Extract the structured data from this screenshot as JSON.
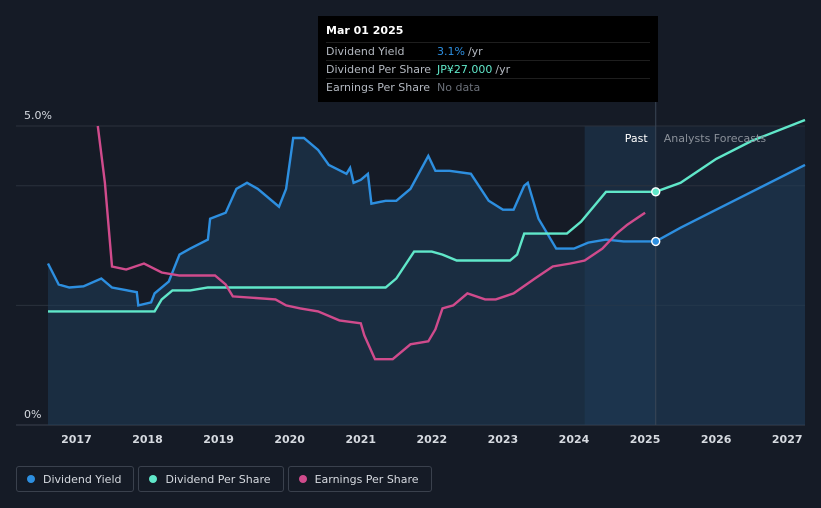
{
  "tooltip": {
    "date": "Mar 01 2025",
    "rows": [
      {
        "label": "Dividend Yield",
        "value": "3.1%",
        "unit": "/yr"
      },
      {
        "label": "Dividend Per Share",
        "value": "JP¥27.000",
        "unit": "/yr"
      },
      {
        "label": "Earnings Per Share",
        "value": "No data",
        "unit": ""
      }
    ]
  },
  "legend": [
    {
      "label": "Dividend Yield",
      "color": "#2d8fe0"
    },
    {
      "label": "Dividend Per Share",
      "color": "#60e7c9"
    },
    {
      "label": "Earnings Per Share",
      "color": "#d04b8c"
    }
  ],
  "chart_data": {
    "type": "line",
    "y_tick_labels": [
      "5.0%",
      "0%"
    ],
    "ylim": [
      0,
      5.0
    ],
    "xlim": [
      2016.6,
      2027.25
    ],
    "x_ticks": [
      2017,
      2018,
      2019,
      2020,
      2021,
      2022,
      2023,
      2024,
      2025,
      2026,
      2027
    ],
    "past_label": "Past",
    "forecast_label": "Analysts Forecasts",
    "forecast_start": 2024.15,
    "today": 2025.15,
    "colors": {
      "yield": "#2d8fe0",
      "dps": "#60e7c9",
      "eps": "#d04b8c"
    },
    "series": [
      {
        "name": "Dividend Yield",
        "unit": "%",
        "points": [
          [
            2016.6,
            2.7
          ],
          [
            2016.75,
            2.35
          ],
          [
            2016.9,
            2.3
          ],
          [
            2017.1,
            2.32
          ],
          [
            2017.35,
            2.45
          ],
          [
            2017.5,
            2.3
          ],
          [
            2017.85,
            2.22
          ],
          [
            2017.87,
            2.0
          ],
          [
            2018.05,
            2.05
          ],
          [
            2018.1,
            2.2
          ],
          [
            2018.3,
            2.4
          ],
          [
            2018.45,
            2.85
          ],
          [
            2018.6,
            2.95
          ],
          [
            2018.85,
            3.1
          ],
          [
            2018.88,
            3.45
          ],
          [
            2019.1,
            3.55
          ],
          [
            2019.25,
            3.95
          ],
          [
            2019.4,
            4.05
          ],
          [
            2019.55,
            3.95
          ],
          [
            2019.85,
            3.65
          ],
          [
            2019.95,
            3.95
          ],
          [
            2020.05,
            4.8
          ],
          [
            2020.2,
            4.8
          ],
          [
            2020.4,
            4.6
          ],
          [
            2020.55,
            4.35
          ],
          [
            2020.8,
            4.2
          ],
          [
            2020.85,
            4.3
          ],
          [
            2020.9,
            4.05
          ],
          [
            2021.0,
            4.1
          ],
          [
            2021.1,
            4.2
          ],
          [
            2021.15,
            3.7
          ],
          [
            2021.35,
            3.75
          ],
          [
            2021.5,
            3.75
          ],
          [
            2021.7,
            3.95
          ],
          [
            2021.95,
            4.5
          ],
          [
            2022.05,
            4.25
          ],
          [
            2022.12,
            4.25
          ],
          [
            2022.15,
            4.25
          ],
          [
            2022.25,
            4.25
          ],
          [
            2022.55,
            4.2
          ],
          [
            2022.8,
            3.75
          ],
          [
            2023.0,
            3.6
          ],
          [
            2023.15,
            3.6
          ],
          [
            2023.3,
            4.0
          ],
          [
            2023.35,
            4.05
          ],
          [
            2023.5,
            3.45
          ],
          [
            2023.75,
            2.95
          ],
          [
            2024.0,
            2.95
          ],
          [
            2024.2,
            3.05
          ],
          [
            2024.45,
            3.1
          ],
          [
            2024.7,
            3.07
          ],
          [
            2025.15,
            3.07
          ],
          [
            2025.5,
            3.3
          ],
          [
            2026.0,
            3.6
          ],
          [
            2026.5,
            3.9
          ],
          [
            2027.25,
            4.35
          ]
        ]
      },
      {
        "name": "Dividend Per Share",
        "points": [
          [
            2016.6,
            1.9
          ],
          [
            2018.1,
            1.9
          ],
          [
            2018.2,
            2.1
          ],
          [
            2018.35,
            2.25
          ],
          [
            2018.6,
            2.25
          ],
          [
            2018.85,
            2.3
          ],
          [
            2019.0,
            2.3
          ],
          [
            2021.35,
            2.3
          ],
          [
            2021.5,
            2.45
          ],
          [
            2021.75,
            2.9
          ],
          [
            2022.0,
            2.9
          ],
          [
            2022.15,
            2.85
          ],
          [
            2022.35,
            2.75
          ],
          [
            2023.1,
            2.75
          ],
          [
            2023.2,
            2.85
          ],
          [
            2023.3,
            3.2
          ],
          [
            2023.9,
            3.2
          ],
          [
            2024.1,
            3.4
          ],
          [
            2024.45,
            3.9
          ],
          [
            2024.7,
            3.9
          ],
          [
            2025.15,
            3.9
          ],
          [
            2025.5,
            4.05
          ],
          [
            2026.0,
            4.45
          ],
          [
            2026.5,
            4.75
          ],
          [
            2027.25,
            5.1
          ]
        ]
      },
      {
        "name": "Earnings Per Share",
        "points": [
          [
            2017.3,
            5.0
          ],
          [
            2017.4,
            4.05
          ],
          [
            2017.5,
            2.65
          ],
          [
            2017.7,
            2.6
          ],
          [
            2017.95,
            2.7
          ],
          [
            2018.2,
            2.55
          ],
          [
            2018.45,
            2.5
          ],
          [
            2018.7,
            2.5
          ],
          [
            2018.95,
            2.5
          ],
          [
            2019.1,
            2.35
          ],
          [
            2019.2,
            2.15
          ],
          [
            2019.8,
            2.1
          ],
          [
            2019.95,
            2.0
          ],
          [
            2020.15,
            1.95
          ],
          [
            2020.4,
            1.9
          ],
          [
            2020.7,
            1.75
          ],
          [
            2021.0,
            1.7
          ],
          [
            2021.05,
            1.5
          ],
          [
            2021.2,
            1.1
          ],
          [
            2021.45,
            1.1
          ],
          [
            2021.7,
            1.35
          ],
          [
            2021.95,
            1.4
          ],
          [
            2022.05,
            1.6
          ],
          [
            2022.15,
            1.95
          ],
          [
            2022.3,
            2.0
          ],
          [
            2022.5,
            2.2
          ],
          [
            2022.75,
            2.1
          ],
          [
            2022.9,
            2.1
          ],
          [
            2023.15,
            2.2
          ],
          [
            2023.45,
            2.45
          ],
          [
            2023.7,
            2.65
          ],
          [
            2023.95,
            2.7
          ],
          [
            2024.15,
            2.75
          ],
          [
            2024.4,
            2.95
          ],
          [
            2024.6,
            3.2
          ],
          [
            2024.75,
            3.35
          ],
          [
            2025.0,
            3.55
          ]
        ]
      }
    ]
  }
}
